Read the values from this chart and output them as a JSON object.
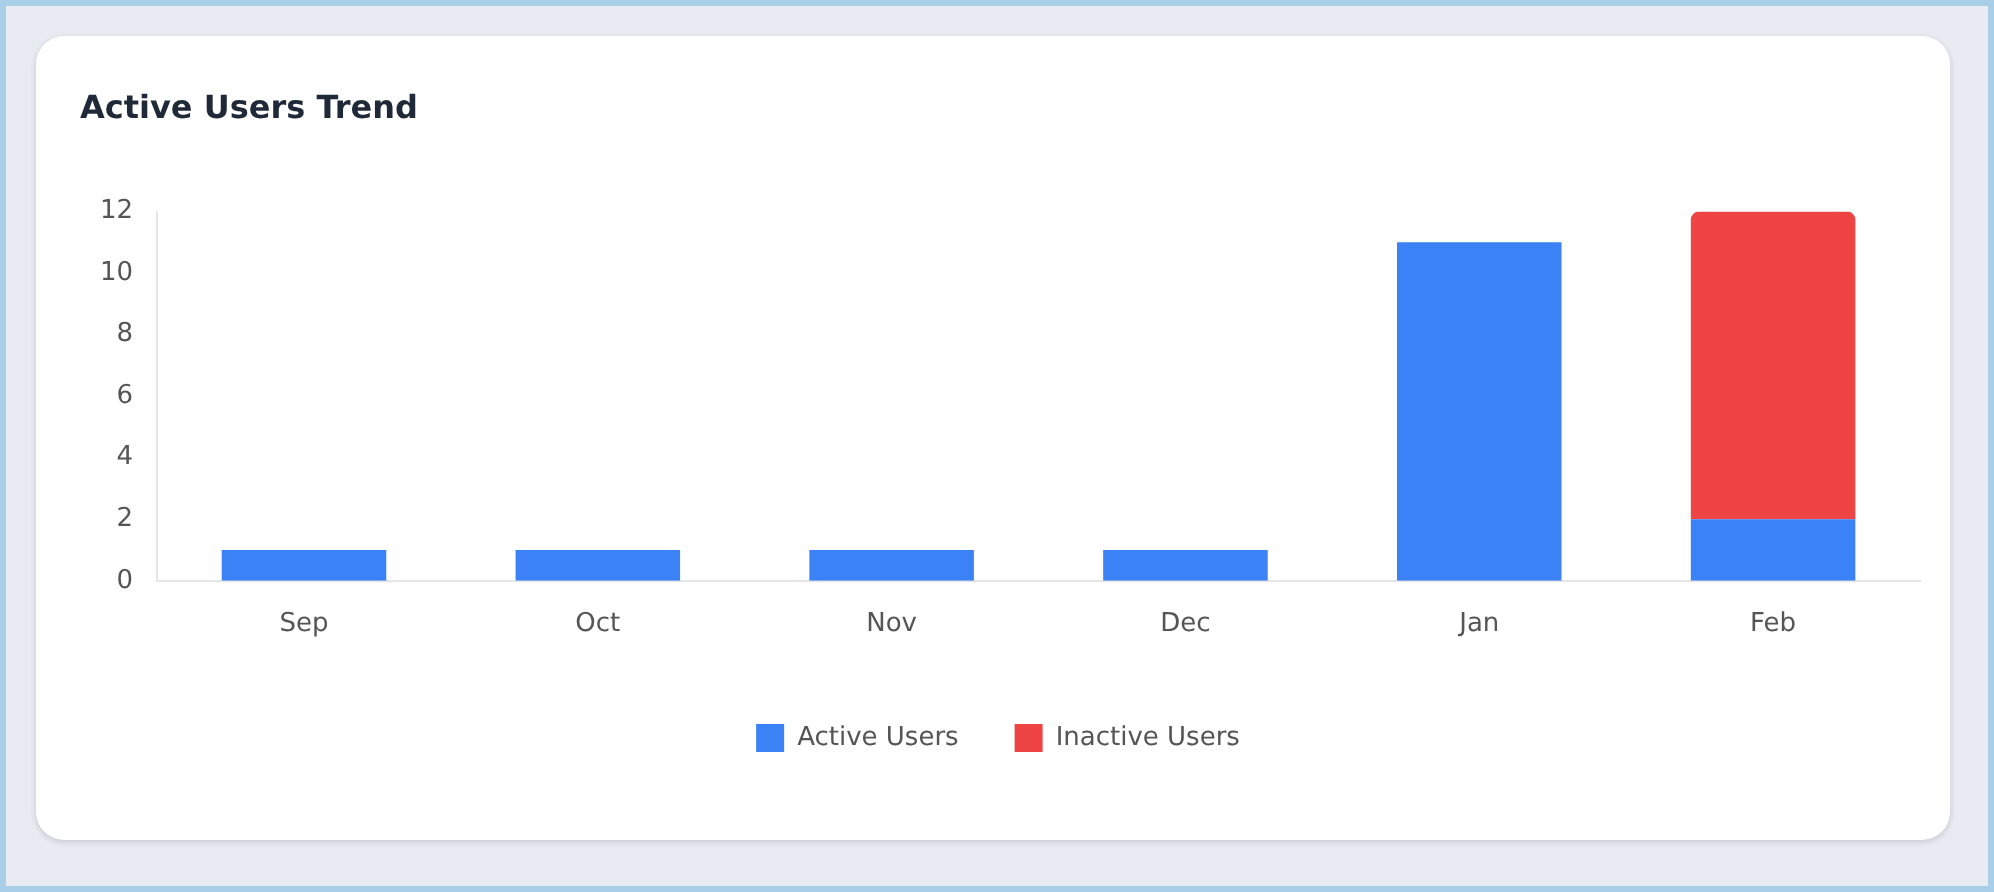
{
  "chart_data": {
    "type": "bar",
    "title": "Active Users Trend",
    "categories": [
      "Sep",
      "Oct",
      "Nov",
      "Dec",
      "Jan",
      "Feb"
    ],
    "stacked": true,
    "ylim": [
      0,
      12
    ],
    "yticks": [
      0,
      2,
      4,
      6,
      8,
      10,
      12
    ],
    "grid": false,
    "legend": "bottom",
    "series": [
      {
        "name": "Active Users",
        "color": "#3b82f6",
        "values": [
          1,
          1,
          1,
          1,
          11,
          2
        ]
      },
      {
        "name": "Inactive Users",
        "color": "#ef4444",
        "values": [
          0,
          0,
          0,
          0,
          0,
          10
        ]
      }
    ]
  }
}
